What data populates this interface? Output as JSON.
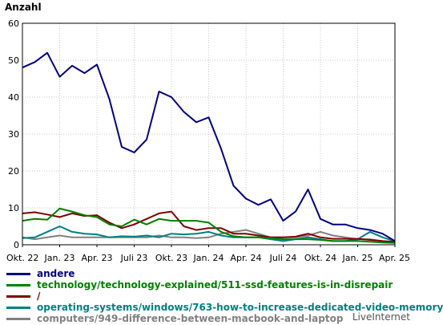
{
  "chart_data": {
    "type": "line",
    "ylabel": "Anzahl",
    "ylim": [
      0,
      60
    ],
    "yticks": [
      0,
      10,
      20,
      30,
      40,
      50,
      60
    ],
    "xtick_labels": [
      "Okt. 22",
      "Jan. 23",
      "Apr. 23",
      "Juli 23",
      "Okt. 23",
      "Jan. 24",
      "Apr. 24",
      "Juli 24",
      "Okt. 24",
      "Jan. 25",
      "Apr. 25"
    ],
    "grid": true,
    "legend_position": "bottom",
    "series": [
      {
        "name": "andere",
        "color": "#000080",
        "values": [
          48,
          49.5,
          52,
          45.5,
          48.5,
          46.5,
          48.8,
          39.5,
          26.5,
          25,
          28.5,
          41.5,
          40,
          36,
          33.2,
          34.5,
          26,
          16,
          12.5,
          10.8,
          12.3,
          6.5,
          9,
          15,
          7,
          5.5,
          5.5,
          4.5,
          4,
          3,
          1
        ]
      },
      {
        "name": "technology/technology-explained/511-ssd-features-is-in-disrepair",
        "color": "#008000",
        "values": [
          6.5,
          7,
          6.8,
          9.8,
          9,
          8,
          7.5,
          5.5,
          5,
          6.8,
          5.5,
          7,
          6.5,
          6.5,
          6.5,
          6,
          3.5,
          2.3,
          2,
          2,
          1.8,
          1.5,
          1.5,
          1.5,
          1.3,
          1,
          1,
          1,
          0.8,
          0.6,
          0.5
        ]
      },
      {
        "name": "/",
        "color": "#800000",
        "values": [
          8.5,
          8.8,
          8.2,
          7.5,
          8.5,
          7.8,
          8,
          6,
          4.5,
          5.5,
          7,
          8.5,
          9,
          5,
          4,
          4.5,
          4.5,
          3,
          3,
          2.5,
          2,
          2,
          2.2,
          3,
          2,
          1.6,
          1.6,
          1.6,
          1.3,
          1,
          0.8
        ]
      },
      {
        "name": "operating-systems/windows/763-how-to-increase-dedicated-video-memory",
        "color": "#008080",
        "values": [
          1.8,
          2,
          3.5,
          5,
          3.5,
          3,
          2.8,
          2,
          2.3,
          2.2,
          2.5,
          2,
          3,
          2.8,
          3,
          3.5,
          2.5,
          2,
          2,
          2,
          1.5,
          1,
          1.5,
          2,
          1.5,
          1,
          1,
          1.5,
          3.5,
          2,
          1
        ]
      },
      {
        "name": "computers/949-difference-between-macbook-and-laptop",
        "color": "#808080",
        "values": [
          2,
          1.5,
          2,
          2.5,
          2,
          2,
          2,
          2,
          2,
          2,
          2,
          2.5,
          2,
          2,
          1.8,
          2,
          3,
          3.5,
          4,
          3,
          2,
          2,
          2,
          2.5,
          3.5,
          2.5,
          2,
          1.5,
          1.5,
          1,
          0.5
        ]
      }
    ]
  },
  "brand": "LiveInternet"
}
